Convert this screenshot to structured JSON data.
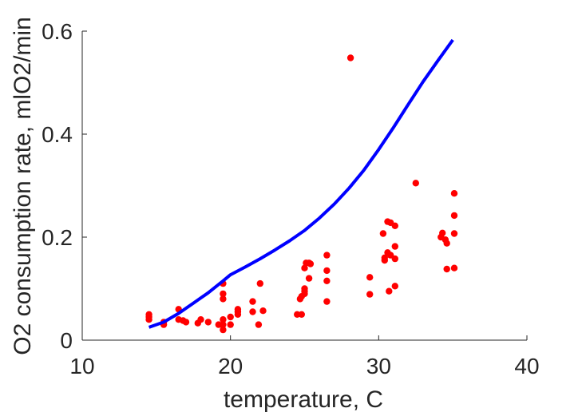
{
  "chart_data": {
    "type": "scatter",
    "xlabel": "temperature, C",
    "ylabel": "O2 consumption rate, mlO2/min",
    "xlim": [
      10,
      40
    ],
    "ylim": [
      0,
      0.6
    ],
    "xticks": [
      10,
      20,
      30,
      40
    ],
    "yticks": [
      0,
      0.2,
      0.4,
      0.6
    ],
    "x_tick_labels": [
      "10",
      "20",
      "30",
      "40"
    ],
    "y_tick_labels": [
      "0",
      "0.2",
      "0.4",
      "0.6"
    ],
    "grid": false,
    "series": [
      {
        "kind": "scatter",
        "color": "#ff0000",
        "points": [
          [
            14.5,
            0.05
          ],
          [
            14.5,
            0.045
          ],
          [
            14.5,
            0.04
          ],
          [
            15.5,
            0.035
          ],
          [
            15.5,
            0.03
          ],
          [
            16.5,
            0.06
          ],
          [
            16.5,
            0.04
          ],
          [
            17.0,
            0.035
          ],
          [
            16.8,
            0.038
          ],
          [
            18.0,
            0.04
          ],
          [
            18.5,
            0.035
          ],
          [
            17.8,
            0.033
          ],
          [
            19.2,
            0.03
          ],
          [
            19.5,
            0.11
          ],
          [
            19.5,
            0.09
          ],
          [
            19.5,
            0.08
          ],
          [
            19.5,
            0.04
          ],
          [
            19.5,
            0.03
          ],
          [
            19.5,
            0.02
          ],
          [
            20.0,
            0.045
          ],
          [
            20.0,
            0.03
          ],
          [
            20.5,
            0.06
          ],
          [
            20.5,
            0.055
          ],
          [
            20.5,
            0.05
          ],
          [
            21.5,
            0.075
          ],
          [
            21.5,
            0.055
          ],
          [
            22.0,
            0.11
          ],
          [
            21.9,
            0.03
          ],
          [
            22.2,
            0.057
          ],
          [
            24.5,
            0.05
          ],
          [
            24.8,
            0.05
          ],
          [
            24.7,
            0.08
          ],
          [
            24.8,
            0.085
          ],
          [
            25.0,
            0.09
          ],
          [
            25.0,
            0.095
          ],
          [
            25.0,
            0.1
          ],
          [
            25.0,
            0.14
          ],
          [
            25.1,
            0.15
          ],
          [
            25.3,
            0.15
          ],
          [
            25.4,
            0.148
          ],
          [
            25.3,
            0.12
          ],
          [
            26.5,
            0.165
          ],
          [
            26.5,
            0.135
          ],
          [
            26.5,
            0.115
          ],
          [
            26.5,
            0.075
          ],
          [
            28.1,
            0.548
          ],
          [
            29.4,
            0.122
          ],
          [
            29.4,
            0.089
          ],
          [
            30.3,
            0.207
          ],
          [
            30.4,
            0.16
          ],
          [
            30.4,
            0.155
          ],
          [
            30.6,
            0.23
          ],
          [
            30.8,
            0.228
          ],
          [
            30.6,
            0.17
          ],
          [
            30.8,
            0.165
          ],
          [
            30.7,
            0.095
          ],
          [
            31.1,
            0.222
          ],
          [
            31.1,
            0.182
          ],
          [
            31.1,
            0.158
          ],
          [
            31.1,
            0.105
          ],
          [
            32.5,
            0.305
          ],
          [
            34.2,
            0.2
          ],
          [
            34.3,
            0.208
          ],
          [
            34.5,
            0.195
          ],
          [
            34.6,
            0.188
          ],
          [
            34.6,
            0.138
          ],
          [
            35.1,
            0.285
          ],
          [
            35.1,
            0.242
          ],
          [
            35.1,
            0.207
          ],
          [
            35.1,
            0.14
          ]
        ]
      },
      {
        "kind": "line",
        "color": "#0000ff",
        "points": [
          [
            14.5,
            0.025
          ],
          [
            15.5,
            0.035
          ],
          [
            16.5,
            0.052
          ],
          [
            17.5,
            0.072
          ],
          [
            18.5,
            0.092
          ],
          [
            19.5,
            0.115
          ],
          [
            20.0,
            0.127
          ],
          [
            21.0,
            0.142
          ],
          [
            22.0,
            0.158
          ],
          [
            23.0,
            0.175
          ],
          [
            24.0,
            0.193
          ],
          [
            25.0,
            0.213
          ],
          [
            26.0,
            0.237
          ],
          [
            27.0,
            0.264
          ],
          [
            28.0,
            0.295
          ],
          [
            29.0,
            0.33
          ],
          [
            30.0,
            0.37
          ],
          [
            31.0,
            0.413
          ],
          [
            32.0,
            0.458
          ],
          [
            33.0,
            0.502
          ],
          [
            34.0,
            0.543
          ],
          [
            35.0,
            0.583
          ]
        ]
      }
    ]
  }
}
